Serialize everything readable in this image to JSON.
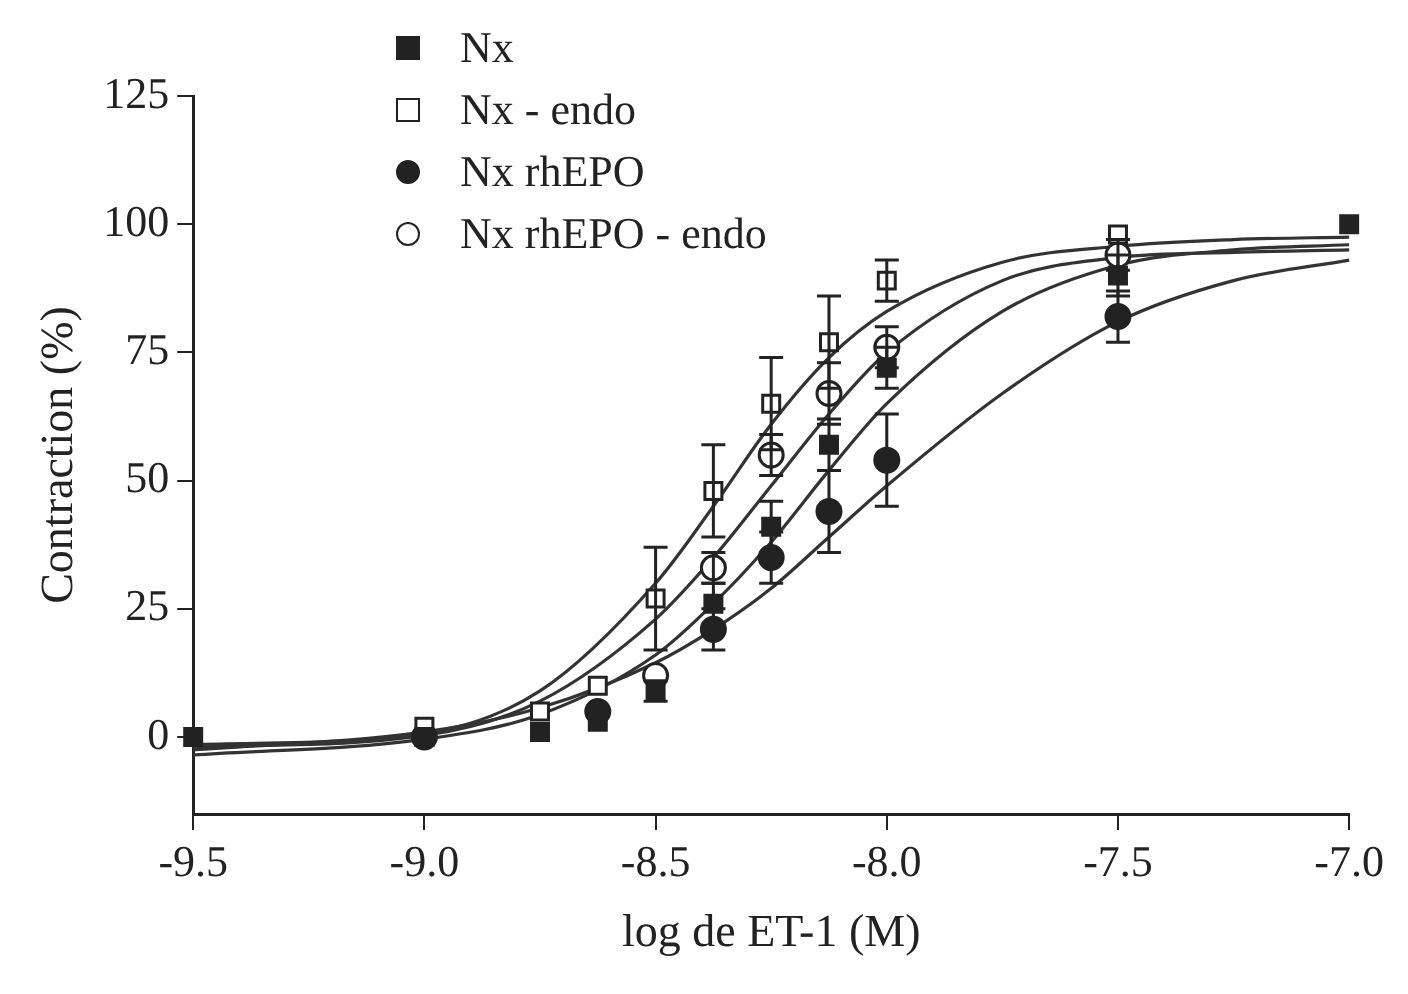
{
  "chart_data": {
    "type": "scatter",
    "xlabel": "log de ET-1 (M)",
    "ylabel": "Contraction (%)",
    "xlim": [
      -9.5,
      -7.0
    ],
    "xticks": [
      -9.5,
      {
        "value": -9,
        "label": "-9.0"
      },
      -8.5,
      {
        "value": -8,
        "label": "-8.0"
      },
      -7.5,
      {
        "value": -7,
        "label": "-7.0"
      }
    ],
    "ylim": [
      -15,
      125
    ],
    "yticks": [
      0,
      25,
      50,
      75,
      100,
      125
    ],
    "grid": false,
    "legend": "top left",
    "series": [
      {
        "name": "Nx",
        "marker": "square",
        "color": "#222222",
        "x": [
          -9.5,
          -9.0,
          -8.75,
          -8.625,
          -8.5,
          -8.375,
          -8.25,
          -8.125,
          -8.0,
          -7.5,
          -7.0
        ],
        "values": [
          0,
          0,
          1,
          3,
          9,
          26,
          41,
          57,
          72,
          90,
          100
        ],
        "errors": [
          null,
          null,
          null,
          null,
          2,
          4,
          5,
          5,
          4,
          4,
          null
        ]
      },
      {
        "name": "Nx - endo",
        "marker": "square",
        "color": "#ffffff",
        "x": [
          -9.0,
          -8.75,
          -8.625,
          -8.5,
          -8.375,
          -8.25,
          -8.125,
          -8.0,
          -7.5
        ],
        "values": [
          2,
          5,
          10,
          27,
          48,
          65,
          77,
          89,
          98
        ],
        "errors": [
          null,
          null,
          null,
          10,
          9,
          9,
          9,
          4,
          null
        ]
      },
      {
        "name": "Nx rhEPO",
        "marker": "circle",
        "color": "#222222",
        "x": [
          -9.0,
          -8.75,
          -8.625,
          -8.5,
          -8.375,
          -8.25,
          -8.125,
          -8.0,
          -7.5
        ],
        "values": [
          0,
          null,
          5,
          null,
          21,
          35,
          44,
          54,
          82
        ],
        "errors": [
          null,
          null,
          null,
          null,
          4,
          5,
          8,
          9,
          5
        ]
      },
      {
        "name": "Nx rhEPO - endo",
        "marker": "circle",
        "color": "#ffffff",
        "x": [
          -8.5,
          -8.375,
          -8.25,
          -8.125,
          -8.0,
          -7.5
        ],
        "values": [
          12,
          33,
          55,
          67,
          76,
          94
        ],
        "errors": [
          null,
          3,
          4,
          6,
          4,
          3
        ]
      },
      {
        "type": "line",
        "marker": "none",
        "color": "#333333",
        "x": [
          -9.5,
          -9.0,
          -8.75,
          -8.5,
          -8.375,
          -8.25,
          -8.125,
          -8.0,
          -7.75,
          -7.5,
          -7.25,
          -7.0
        ],
        "values": [
          -3.5,
          -0.4,
          4.4,
          16,
          26,
          38,
          52,
          65,
          83,
          92,
          95,
          96
        ]
      },
      {
        "type": "line",
        "marker": "none",
        "color": "#333333",
        "x": [
          -9.5,
          -9.0,
          -8.75,
          -8.5,
          -8.375,
          -8.25,
          -8.125,
          -8.0,
          -7.75,
          -7.5,
          -7.25,
          -7.0
        ],
        "values": [
          -1.5,
          0.7,
          9,
          30,
          45,
          61,
          74,
          83,
          92.6,
          95.7,
          97,
          97.5
        ]
      },
      {
        "type": "line",
        "marker": "none",
        "color": "#333333",
        "x": [
          -9.5,
          -9.0,
          -8.75,
          -8.5,
          -8.375,
          -8.25,
          -8.125,
          -8.0,
          -7.75,
          -7.5,
          -7.25,
          -7.0
        ],
        "values": [
          -2.5,
          1,
          5.7,
          14.5,
          21,
          29,
          39,
          49,
          67,
          81,
          89,
          93
        ]
      },
      {
        "type": "line",
        "marker": "none",
        "color": "#333333",
        "x": [
          -9.5,
          -9.0,
          -8.75,
          -8.5,
          -8.375,
          -8.25,
          -8.125,
          -8.0,
          -7.75,
          -7.5,
          -7.25,
          -7.0
        ],
        "values": [
          -2.0,
          0.3,
          7,
          23,
          35,
          49,
          63,
          75,
          89,
          93.5,
          94.5,
          95
        ]
      }
    ]
  }
}
